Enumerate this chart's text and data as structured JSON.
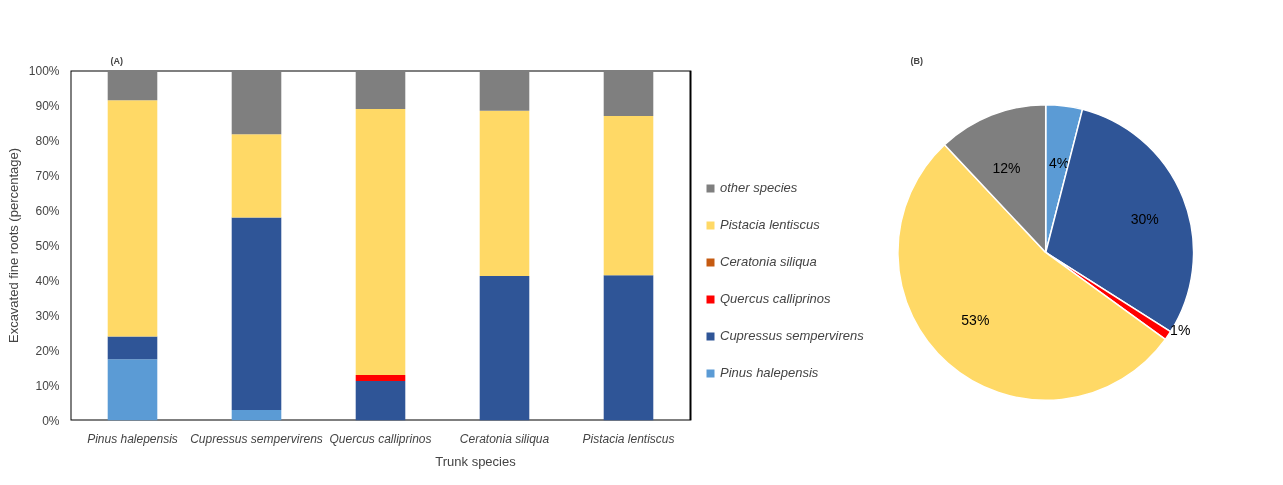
{
  "chart_data": [
    {
      "type": "bar",
      "title": "(A)",
      "xlabel": "Trunk species",
      "ylabel": "Excavated fine roots (percentage)",
      "stacked": true,
      "legend": "right",
      "grid": false,
      "categories": [
        "Pinus halepensis",
        "Cupressus sempervirens",
        "Quercus calliprinos",
        "Ceratonia siliqua",
        "Pistacia lentiscus"
      ],
      "ylim": [
        0,
        100
      ],
      "yticks": [
        {
          "value": 0,
          "label": "0%"
        },
        {
          "value": 10,
          "label": "10%"
        },
        {
          "value": 20,
          "label": "20%"
        },
        {
          "value": 30,
          "label": "30%"
        },
        {
          "value": 40,
          "label": "40%"
        },
        {
          "value": 50,
          "label": "50%"
        },
        {
          "value": 60,
          "label": "60%"
        },
        {
          "value": 70,
          "label": "70%"
        },
        {
          "value": 80,
          "label": "80%"
        },
        {
          "value": 90,
          "label": "90%"
        },
        {
          "value": 100,
          "label": "100%"
        }
      ],
      "series": [
        {
          "name": "Pinus halepensis",
          "color": "#5b9bd5",
          "values": [
            17.5,
            3,
            0,
            0,
            0
          ]
        },
        {
          "name": "Cupressus sempervirens",
          "color": "#2f5597",
          "values": [
            6.5,
            55,
            11.3,
            41.3,
            41.5
          ]
        },
        {
          "name": "Quercus calliprinos",
          "color": "#ff0000",
          "values": [
            0,
            0,
            1.7,
            0,
            0
          ]
        },
        {
          "name": "Ceratonia siliqua",
          "color": "#c55a11",
          "values": [
            0,
            0,
            0,
            0,
            0
          ]
        },
        {
          "name": "Pistacia lentiscus",
          "color": "#ffd966",
          "values": [
            67.5,
            23.8,
            76,
            47.2,
            45.5
          ]
        },
        {
          "name": "other species",
          "color": "#7f7f7f",
          "values": [
            8.5,
            18.2,
            11,
            11.5,
            13
          ]
        }
      ]
    },
    {
      "type": "pie",
      "title": "(B)",
      "categories": [
        null,
        null,
        null,
        null,
        null
      ],
      "values": [
        4,
        30,
        1,
        53,
        12
      ],
      "colors": [
        "#5b9bd5",
        "#2f5597",
        "#ff0000",
        "#ffd966",
        "#7f7f7f"
      ],
      "value_labels": [
        "4%",
        "30%",
        "1%",
        "53%",
        "12%"
      ]
    }
  ]
}
